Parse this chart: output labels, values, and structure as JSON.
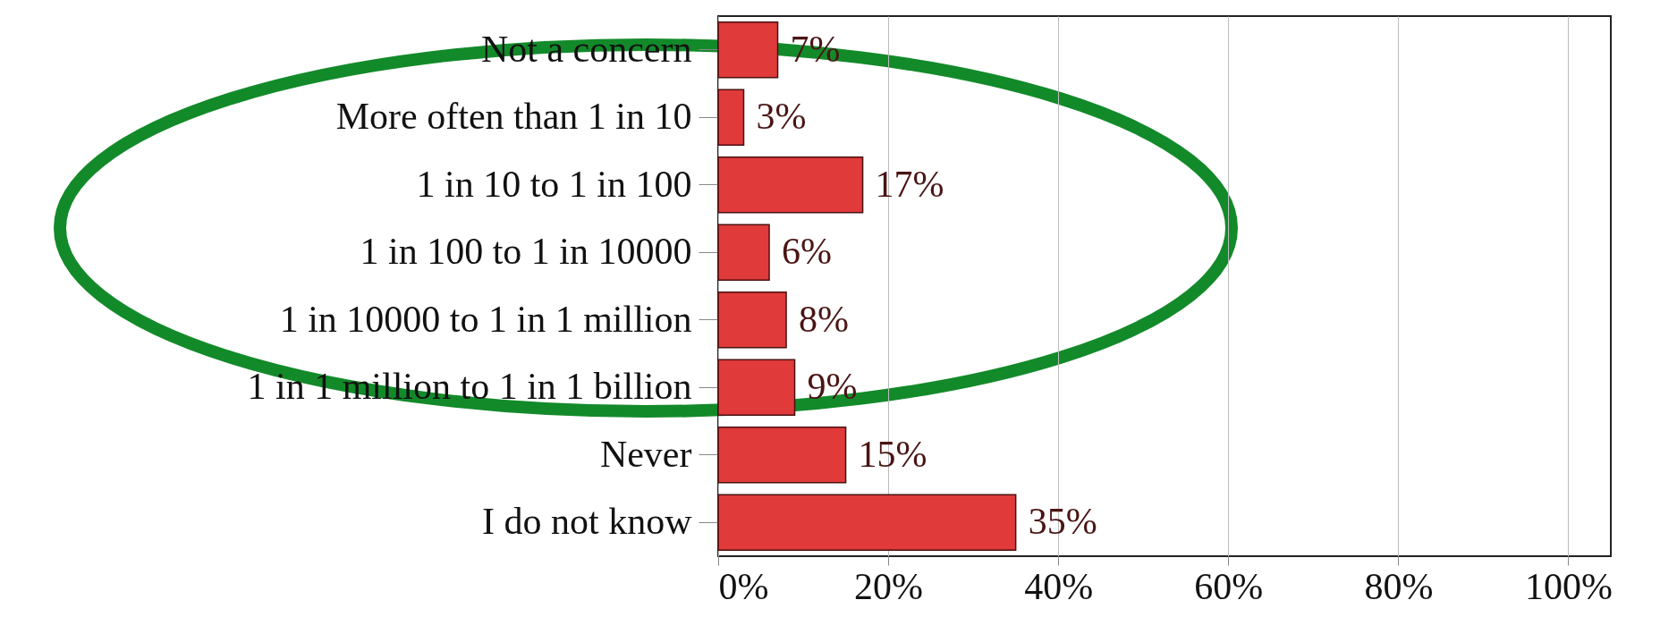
{
  "chart_data": {
    "type": "bar",
    "orientation": "horizontal",
    "categories": [
      "Not a concern",
      "More often than 1 in 10",
      "1 in 10 to 1 in 100",
      "1 in 100 to 1 in 10000",
      "1 in 10000 to 1 in 1 million",
      "1 in 1 million to 1 in 1 billion",
      "Never",
      "I do not know"
    ],
    "values": [
      7,
      3,
      17,
      6,
      8,
      9,
      15,
      35
    ],
    "value_labels": [
      "7%",
      "3%",
      "17%",
      "6%",
      "8%",
      "9%",
      "15%",
      "35%"
    ],
    "color": "#e03a3a",
    "xlim": [
      0,
      105
    ],
    "xticks": [
      {
        "value": 0,
        "label": "0%"
      },
      {
        "value": 20,
        "label": "20%"
      },
      {
        "value": 40,
        "label": "40%"
      },
      {
        "value": 60,
        "label": "60%"
      },
      {
        "value": 80,
        "label": "80%"
      },
      {
        "value": 100,
        "label": "100%"
      }
    ],
    "grid": "x"
  }
}
